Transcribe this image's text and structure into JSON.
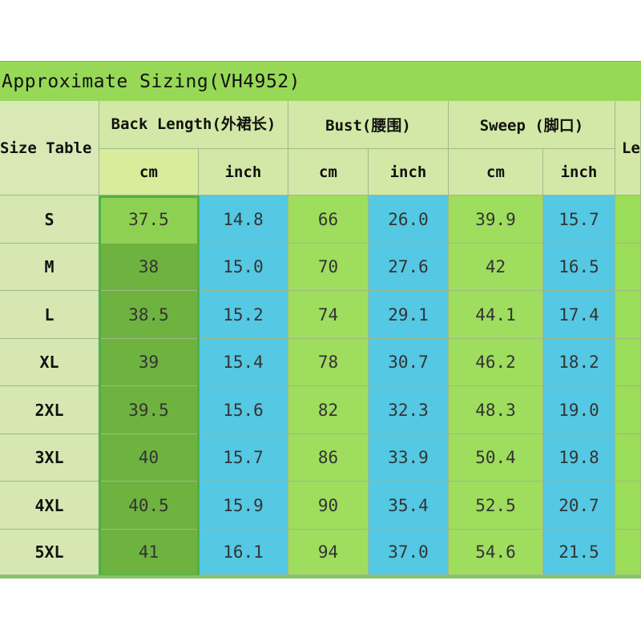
{
  "title": "Approximate Sizing(VH4952)",
  "headers": {
    "size_table": "Size Table",
    "back_length": "Back Length(外裙长)",
    "bust": "Bust(腰围)",
    "sweep": "Sweep (脚口)",
    "partial": "Le"
  },
  "units": [
    "cm",
    "inch",
    "cm",
    "inch",
    "cm",
    "inch"
  ],
  "rows": [
    {
      "size": "S",
      "back_cm": "37.5",
      "back_in": "14.8",
      "bust_cm": "66",
      "bust_in": "26.0",
      "sweep_cm": "39.9",
      "sweep_in": "15.7"
    },
    {
      "size": "M",
      "back_cm": "38",
      "back_in": "15.0",
      "bust_cm": "70",
      "bust_in": "27.6",
      "sweep_cm": "42",
      "sweep_in": "16.5"
    },
    {
      "size": "L",
      "back_cm": "38.5",
      "back_in": "15.2",
      "bust_cm": "74",
      "bust_in": "29.1",
      "sweep_cm": "44.1",
      "sweep_in": "17.4"
    },
    {
      "size": "XL",
      "back_cm": "39",
      "back_in": "15.4",
      "bust_cm": "78",
      "bust_in": "30.7",
      "sweep_cm": "46.2",
      "sweep_in": "18.2"
    },
    {
      "size": "2XL",
      "back_cm": "39.5",
      "back_in": "15.6",
      "bust_cm": "82",
      "bust_in": "32.3",
      "sweep_cm": "48.3",
      "sweep_in": "19.0"
    },
    {
      "size": "3XL",
      "back_cm": "40",
      "back_in": "15.7",
      "bust_cm": "86",
      "bust_in": "33.9",
      "sweep_cm": "50.4",
      "sweep_in": "19.8"
    },
    {
      "size": "4XL",
      "back_cm": "40.5",
      "back_in": "15.9",
      "bust_cm": "90",
      "bust_in": "35.4",
      "sweep_cm": "52.5",
      "sweep_in": "20.7"
    },
    {
      "size": "5XL",
      "back_cm": "41",
      "back_in": "16.1",
      "bust_cm": "94",
      "bust_in": "37.0",
      "sweep_cm": "54.6",
      "sweep_in": "21.5"
    }
  ],
  "colors": {
    "header_bg": "#d3e8a6",
    "title_bg": "#97d957",
    "green_light": "#9fdd5e",
    "green_dark": "#6eb33f",
    "blue": "#55c8e3",
    "selection_border": "#4fb04a"
  }
}
